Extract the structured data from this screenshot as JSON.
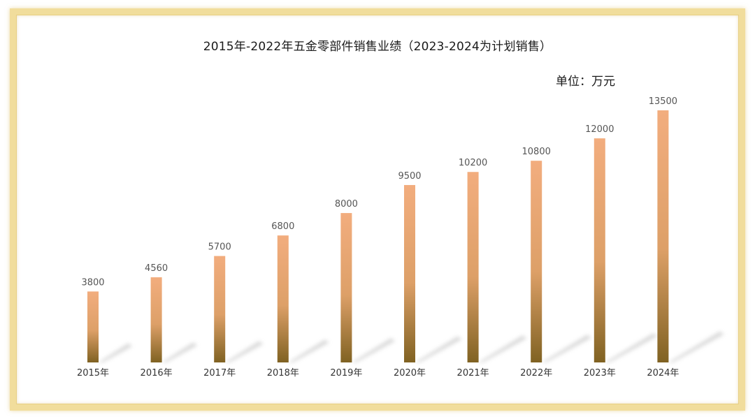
{
  "chart_data": {
    "type": "bar",
    "title": "2015年-2022年五金零部件销售业绩（2023-2024为计划销售）",
    "unit_label": "单位：万元",
    "categories": [
      "2015年",
      "2016年",
      "2017年",
      "2018年",
      "2019年",
      "2020年",
      "2021年",
      "2022年",
      "2023年",
      "2024年"
    ],
    "values": [
      3800,
      4560,
      5700,
      6800,
      8000,
      9500,
      10200,
      10800,
      12000,
      13500
    ],
    "xlabel": "",
    "ylabel": "",
    "ylim": [
      0,
      14000
    ],
    "grid": false,
    "legend": "none",
    "colors": {
      "bar_top": "#f2ad7e",
      "bar_mid": "#e3a06a",
      "bar_bottom": "#806222",
      "shadow": "#cfcfcf",
      "frame": "#f1dd9c"
    }
  }
}
